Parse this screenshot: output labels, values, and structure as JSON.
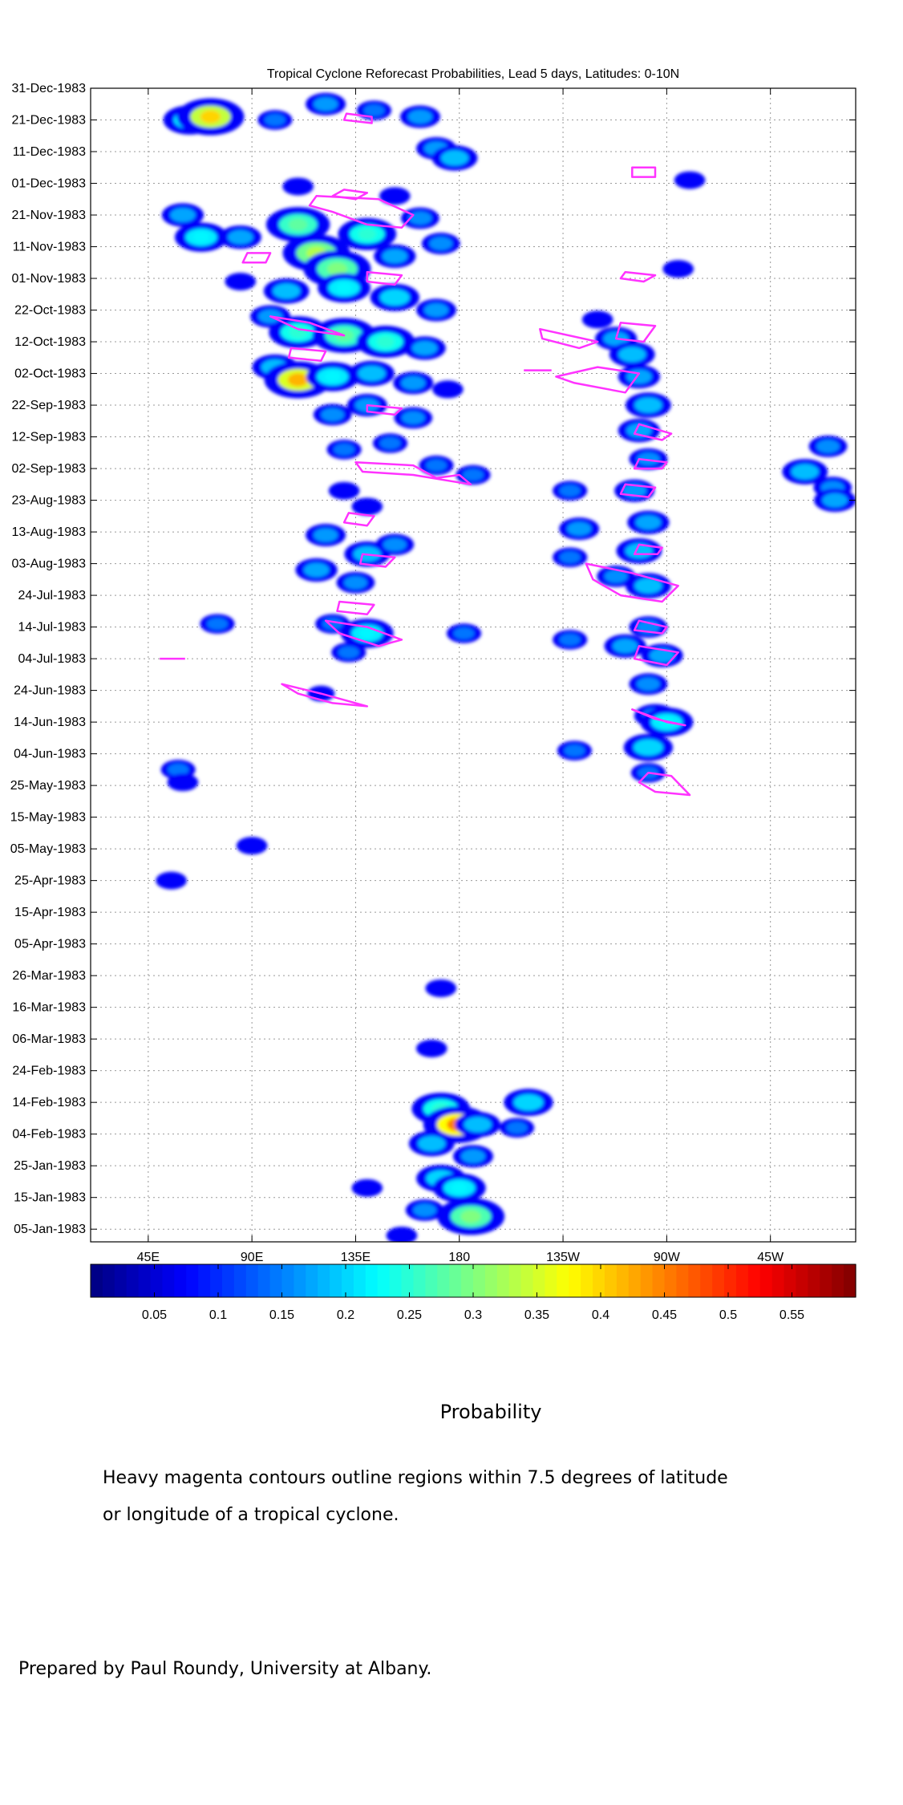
{
  "chart_data": {
    "type": "heatmap",
    "title": "Tropical Cyclone Reforecast Probabilities, Lead 5 days, Latitudes: 0-10N",
    "xlabel": "",
    "ylabel": "",
    "x_tick_labels": [
      "45E",
      "90E",
      "135E",
      "180",
      "135W",
      "90W",
      "45W"
    ],
    "x_tick_values_deg_east": [
      45,
      90,
      135,
      180,
      225,
      270,
      315
    ],
    "xlim_deg_east": [
      20,
      352
    ],
    "y_tick_labels": [
      "31-Dec-1983",
      "21-Dec-1983",
      "11-Dec-1983",
      "01-Dec-1983",
      "21-Nov-1983",
      "11-Nov-1983",
      "01-Nov-1983",
      "22-Oct-1983",
      "12-Oct-1983",
      "02-Oct-1983",
      "22-Sep-1983",
      "12-Sep-1983",
      "02-Sep-1983",
      "23-Aug-1983",
      "13-Aug-1983",
      "03-Aug-1983",
      "24-Jul-1983",
      "14-Jul-1983",
      "04-Jul-1983",
      "24-Jun-1983",
      "14-Jun-1983",
      "04-Jun-1983",
      "25-May-1983",
      "15-May-1983",
      "05-May-1983",
      "25-Apr-1983",
      "15-Apr-1983",
      "05-Apr-1983",
      "26-Mar-1983",
      "16-Mar-1983",
      "06-Mar-1983",
      "24-Feb-1983",
      "14-Feb-1983",
      "04-Feb-1983",
      "25-Jan-1983",
      "15-Jan-1983",
      "05-Jan-1983"
    ],
    "colorbar": {
      "label": "Probability",
      "range": [
        0,
        0.6
      ],
      "tick_labels": [
        "0.05",
        "0.1",
        "0.15",
        "0.2",
        "0.25",
        "0.3",
        "0.35",
        "0.4",
        "0.45",
        "0.5",
        "0.55"
      ],
      "tick_values": [
        0.05,
        0.1,
        0.15,
        0.2,
        0.25,
        0.3,
        0.35,
        0.4,
        0.45,
        0.5,
        0.55
      ],
      "colormap": "jet"
    },
    "grid": true,
    "contour_color": "#ff33ff",
    "blobs": [
      {
        "lon": 63,
        "date": "1983-12-21",
        "p": 0.22
      },
      {
        "lon": 72,
        "date": "1983-12-22",
        "p": 0.4
      },
      {
        "lon": 100,
        "date": "1983-12-21",
        "p": 0.12
      },
      {
        "lon": 122,
        "date": "1983-12-26",
        "p": 0.15
      },
      {
        "lon": 143,
        "date": "1983-12-24",
        "p": 0.12
      },
      {
        "lon": 163,
        "date": "1983-12-22",
        "p": 0.15
      },
      {
        "lon": 170,
        "date": "1983-12-12",
        "p": 0.15
      },
      {
        "lon": 178,
        "date": "1983-12-09",
        "p": 0.18
      },
      {
        "lon": 152,
        "date": "1983-11-27",
        "p": 0.1
      },
      {
        "lon": 110,
        "date": "1983-11-30",
        "p": 0.1
      },
      {
        "lon": 60,
        "date": "1983-11-21",
        "p": 0.16
      },
      {
        "lon": 68,
        "date": "1983-11-14",
        "p": 0.22
      },
      {
        "lon": 85,
        "date": "1983-11-14",
        "p": 0.16
      },
      {
        "lon": 110,
        "date": "1983-11-18",
        "p": 0.28
      },
      {
        "lon": 118,
        "date": "1983-11-09",
        "p": 0.33
      },
      {
        "lon": 127,
        "date": "1983-11-04",
        "p": 0.3
      },
      {
        "lon": 140,
        "date": "1983-11-15",
        "p": 0.25
      },
      {
        "lon": 152,
        "date": "1983-11-08",
        "p": 0.16
      },
      {
        "lon": 163,
        "date": "1983-11-20",
        "p": 0.14
      },
      {
        "lon": 172,
        "date": "1983-11-12",
        "p": 0.14
      },
      {
        "lon": 85,
        "date": "1983-10-31",
        "p": 0.1
      },
      {
        "lon": 105,
        "date": "1983-10-28",
        "p": 0.18
      },
      {
        "lon": 130,
        "date": "1983-10-29",
        "p": 0.22
      },
      {
        "lon": 152,
        "date": "1983-10-26",
        "p": 0.2
      },
      {
        "lon": 170,
        "date": "1983-10-22",
        "p": 0.15
      },
      {
        "lon": 98,
        "date": "1983-10-20",
        "p": 0.15
      },
      {
        "lon": 110,
        "date": "1983-10-15",
        "p": 0.25
      },
      {
        "lon": 130,
        "date": "1983-10-14",
        "p": 0.28
      },
      {
        "lon": 148,
        "date": "1983-10-12",
        "p": 0.25
      },
      {
        "lon": 165,
        "date": "1983-10-10",
        "p": 0.16
      },
      {
        "lon": 100,
        "date": "1983-10-04",
        "p": 0.18
      },
      {
        "lon": 110,
        "date": "1983-09-30",
        "p": 0.42
      },
      {
        "lon": 125,
        "date": "1983-10-01",
        "p": 0.22
      },
      {
        "lon": 142,
        "date": "1983-10-02",
        "p": 0.18
      },
      {
        "lon": 160,
        "date": "1983-09-29",
        "p": 0.15
      },
      {
        "lon": 175,
        "date": "1983-09-27",
        "p": 0.1
      },
      {
        "lon": 125,
        "date": "1983-09-19",
        "p": 0.14
      },
      {
        "lon": 140,
        "date": "1983-09-22",
        "p": 0.15
      },
      {
        "lon": 160,
        "date": "1983-09-18",
        "p": 0.14
      },
      {
        "lon": 130,
        "date": "1983-09-08",
        "p": 0.12
      },
      {
        "lon": 150,
        "date": "1983-09-10",
        "p": 0.12
      },
      {
        "lon": 170,
        "date": "1983-09-03",
        "p": 0.12
      },
      {
        "lon": 186,
        "date": "1983-08-31",
        "p": 0.12
      },
      {
        "lon": 130,
        "date": "1983-08-26",
        "p": 0.1
      },
      {
        "lon": 140,
        "date": "1983-08-21",
        "p": 0.1
      },
      {
        "lon": 122,
        "date": "1983-08-12",
        "p": 0.15
      },
      {
        "lon": 140,
        "date": "1983-08-06",
        "p": 0.18
      },
      {
        "lon": 152,
        "date": "1983-08-09",
        "p": 0.14
      },
      {
        "lon": 118,
        "date": "1983-08-01",
        "p": 0.16
      },
      {
        "lon": 135,
        "date": "1983-07-28",
        "p": 0.14
      },
      {
        "lon": 125,
        "date": "1983-07-15",
        "p": 0.12
      },
      {
        "lon": 140,
        "date": "1983-07-12",
        "p": 0.22
      },
      {
        "lon": 132,
        "date": "1983-07-06",
        "p": 0.12
      },
      {
        "lon": 182,
        "date": "1983-07-12",
        "p": 0.12
      },
      {
        "lon": 75,
        "date": "1983-07-15",
        "p": 0.12
      },
      {
        "lon": 120,
        "date": "1983-06-23",
        "p": 0.08
      },
      {
        "lon": 58,
        "date": "1983-05-30",
        "p": 0.12
      },
      {
        "lon": 60,
        "date": "1983-05-26",
        "p": 0.1
      },
      {
        "lon": 90,
        "date": "1983-05-06",
        "p": 0.1
      },
      {
        "lon": 55,
        "date": "1983-04-25",
        "p": 0.1
      },
      {
        "lon": 172,
        "date": "1983-03-22",
        "p": 0.1
      },
      {
        "lon": 168,
        "date": "1983-03-03",
        "p": 0.1
      },
      {
        "lon": 172,
        "date": "1983-02-12",
        "p": 0.25
      },
      {
        "lon": 179,
        "date": "1983-02-07",
        "p": 0.45
      },
      {
        "lon": 188,
        "date": "1983-02-07",
        "p": 0.18
      },
      {
        "lon": 168,
        "date": "1983-02-01",
        "p": 0.18
      },
      {
        "lon": 186,
        "date": "1983-01-28",
        "p": 0.15
      },
      {
        "lon": 172,
        "date": "1983-01-21",
        "p": 0.2
      },
      {
        "lon": 180,
        "date": "1983-01-18",
        "p": 0.22
      },
      {
        "lon": 185,
        "date": "1983-01-09",
        "p": 0.3
      },
      {
        "lon": 165,
        "date": "1983-01-11",
        "p": 0.14
      },
      {
        "lon": 140,
        "date": "1983-01-18",
        "p": 0.1
      },
      {
        "lon": 155,
        "date": "1983-01-03",
        "p": 0.1
      },
      {
        "lon": 210,
        "date": "1983-02-14",
        "p": 0.2
      },
      {
        "lon": 205,
        "date": "1983-02-06",
        "p": 0.12
      },
      {
        "lon": 240,
        "date": "1983-10-19",
        "p": 0.1
      },
      {
        "lon": 248,
        "date": "1983-10-13",
        "p": 0.16
      },
      {
        "lon": 255,
        "date": "1983-10-08",
        "p": 0.18
      },
      {
        "lon": 258,
        "date": "1983-10-01",
        "p": 0.16
      },
      {
        "lon": 262,
        "date": "1983-09-22",
        "p": 0.18
      },
      {
        "lon": 258,
        "date": "1983-09-14",
        "p": 0.16
      },
      {
        "lon": 262,
        "date": "1983-09-05",
        "p": 0.14
      },
      {
        "lon": 256,
        "date": "1983-08-26",
        "p": 0.15
      },
      {
        "lon": 262,
        "date": "1983-08-16",
        "p": 0.16
      },
      {
        "lon": 258,
        "date": "1983-08-07",
        "p": 0.18
      },
      {
        "lon": 232,
        "date": "1983-08-14",
        "p": 0.15
      },
      {
        "lon": 228,
        "date": "1983-08-05",
        "p": 0.12
      },
      {
        "lon": 248,
        "date": "1983-07-30",
        "p": 0.14
      },
      {
        "lon": 262,
        "date": "1983-07-27",
        "p": 0.18
      },
      {
        "lon": 262,
        "date": "1983-07-14",
        "p": 0.14
      },
      {
        "lon": 252,
        "date": "1983-07-08",
        "p": 0.16
      },
      {
        "lon": 268,
        "date": "1983-07-05",
        "p": 0.16
      },
      {
        "lon": 262,
        "date": "1983-06-26",
        "p": 0.14
      },
      {
        "lon": 265,
        "date": "1983-06-16",
        "p": 0.16
      },
      {
        "lon": 270,
        "date": "1983-06-14",
        "p": 0.22
      },
      {
        "lon": 262,
        "date": "1983-06-06",
        "p": 0.2
      },
      {
        "lon": 262,
        "date": "1983-05-29",
        "p": 0.12
      },
      {
        "lon": 228,
        "date": "1983-07-10",
        "p": 0.12
      },
      {
        "lon": 230,
        "date": "1983-06-05",
        "p": 0.12
      },
      {
        "lon": 228,
        "date": "1983-08-26",
        "p": 0.12
      },
      {
        "lon": 280,
        "date": "1983-12-02",
        "p": 0.1
      },
      {
        "lon": 275,
        "date": "1983-11-04",
        "p": 0.1
      },
      {
        "lon": 330,
        "date": "1983-09-01",
        "p": 0.18
      },
      {
        "lon": 340,
        "date": "1983-09-09",
        "p": 0.14
      },
      {
        "lon": 342,
        "date": "1983-08-27",
        "p": 0.14
      },
      {
        "lon": 343,
        "date": "1983-08-23",
        "p": 0.16
      }
    ],
    "contours": [
      [
        [
          131,
          "1983-12-23"
        ],
        [
          142,
          "1983-12-22"
        ],
        [
          142,
          "1983-12-20"
        ],
        [
          130,
          "1983-12-21"
        ]
      ],
      [
        [
          255,
          "1983-12-06"
        ],
        [
          265,
          "1983-12-06"
        ],
        [
          265,
          "1983-12-03"
        ],
        [
          255,
          "1983-12-03"
        ]
      ],
      [
        [
          118,
          "1983-11-27"
        ],
        [
          145,
          "1983-11-26"
        ],
        [
          160,
          "1983-11-21"
        ],
        [
          155,
          "1983-11-17"
        ],
        [
          140,
          "1983-11-18"
        ],
        [
          125,
          "1983-11-22"
        ],
        [
          115,
          "1983-11-24"
        ]
      ],
      [
        [
          130,
          "1983-11-29"
        ],
        [
          140,
          "1983-11-28"
        ],
        [
          135,
          "1983-11-26"
        ],
        [
          125,
          "1983-11-27"
        ]
      ],
      [
        [
          88,
          "1983-11-09"
        ],
        [
          98,
          "1983-11-09"
        ],
        [
          96,
          "1983-11-06"
        ],
        [
          86,
          "1983-11-06"
        ]
      ],
      [
        [
          252,
          "1983-11-03"
        ],
        [
          265,
          "1983-11-02"
        ],
        [
          260,
          "1983-10-31"
        ],
        [
          250,
          "1983-11-01"
        ]
      ],
      [
        [
          140,
          "1983-11-03"
        ],
        [
          155,
          "1983-11-02"
        ],
        [
          152,
          "1983-10-30"
        ],
        [
          140,
          "1983-10-31"
        ]
      ],
      [
        [
          98,
          "1983-10-20"
        ],
        [
          110,
          "1983-10-16"
        ],
        [
          130,
          "1983-10-14"
        ],
        [
          115,
          "1983-10-18"
        ]
      ],
      [
        [
          107,
          "1983-10-10"
        ],
        [
          122,
          "1983-10-09"
        ],
        [
          120,
          "1983-10-06"
        ],
        [
          106,
          "1983-10-07"
        ]
      ],
      [
        [
          215,
          "1983-10-16"
        ],
        [
          240,
          "1983-10-12"
        ],
        [
          232,
          "1983-10-10"
        ],
        [
          216,
          "1983-10-13"
        ]
      ],
      [
        [
          250,
          "1983-10-18"
        ],
        [
          265,
          "1983-10-17"
        ],
        [
          260,
          "1983-10-12"
        ],
        [
          248,
          "1983-10-13"
        ]
      ],
      [
        [
          240,
          "1983-10-04"
        ],
        [
          258,
          "1983-10-02"
        ],
        [
          252,
          "1983-09-26"
        ],
        [
          230,
          "1983-09-29"
        ],
        [
          222,
          "1983-10-01"
        ]
      ],
      [
        [
          140,
          "1983-09-22"
        ],
        [
          155,
          "1983-09-21"
        ],
        [
          152,
          "1983-09-19"
        ],
        [
          140,
          "1983-09-20"
        ]
      ],
      [
        [
          258,
          "1983-09-16"
        ],
        [
          272,
          "1983-09-13"
        ],
        [
          268,
          "1983-09-11"
        ],
        [
          256,
          "1983-09-13"
        ]
      ],
      [
        [
          135,
          "1983-09-04"
        ],
        [
          160,
          "1983-09-03"
        ],
        [
          170,
          "1983-08-30"
        ],
        [
          180,
          "1983-08-31"
        ],
        [
          185,
          "1983-08-28"
        ],
        [
          160,
          "1983-08-31"
        ],
        [
          138,
          "1983-09-01"
        ]
      ],
      [
        [
          258,
          "1983-09-05"
        ],
        [
          270,
          "1983-09-04"
        ],
        [
          268,
          "1983-09-02"
        ],
        [
          256,
          "1983-09-02"
        ]
      ],
      [
        [
          252,
          "1983-08-28"
        ],
        [
          265,
          "1983-08-27"
        ],
        [
          262,
          "1983-08-24"
        ],
        [
          250,
          "1983-08-25"
        ]
      ],
      [
        [
          132,
          "1983-08-19"
        ],
        [
          143,
          "1983-08-18"
        ],
        [
          140,
          "1983-08-15"
        ],
        [
          130,
          "1983-08-16"
        ]
      ],
      [
        [
          138,
          "1983-08-06"
        ],
        [
          152,
          "1983-08-05"
        ],
        [
          148,
          "1983-08-02"
        ],
        [
          137,
          "1983-08-03"
        ]
      ],
      [
        [
          258,
          "1983-08-09"
        ],
        [
          268,
          "1983-08-08"
        ],
        [
          266,
          "1983-08-06"
        ],
        [
          256,
          "1983-08-06"
        ]
      ],
      [
        [
          235,
          "1983-08-03"
        ],
        [
          255,
          "1983-07-31"
        ],
        [
          275,
          "1983-07-27"
        ],
        [
          268,
          "1983-07-22"
        ],
        [
          250,
          "1983-07-24"
        ],
        [
          238,
          "1983-07-29"
        ]
      ],
      [
        [
          128,
          "1983-07-22"
        ],
        [
          143,
          "1983-07-21"
        ],
        [
          140,
          "1983-07-18"
        ],
        [
          127,
          "1983-07-19"
        ]
      ],
      [
        [
          122,
          "1983-07-16"
        ],
        [
          140,
          "1983-07-14"
        ],
        [
          155,
          "1983-07-10"
        ],
        [
          145,
          "1983-07-08"
        ],
        [
          128,
          "1983-07-12"
        ]
      ],
      [
        [
          258,
          "1983-07-16"
        ],
        [
          270,
          "1983-07-14"
        ],
        [
          268,
          "1983-07-12"
        ],
        [
          256,
          "1983-07-13"
        ]
      ],
      [
        [
          258,
          "1983-07-08"
        ],
        [
          275,
          "1983-07-06"
        ],
        [
          270,
          "1983-07-02"
        ],
        [
          256,
          "1983-07-04"
        ]
      ],
      [
        [
          103,
          "1983-06-26"
        ],
        [
          120,
          "1983-06-23"
        ],
        [
          140,
          "1983-06-19"
        ],
        [
          125,
          "1983-06-20"
        ],
        [
          110,
          "1983-06-23"
        ]
      ],
      [
        [
          255,
          "1983-06-18"
        ],
        [
          270,
          "1983-06-14"
        ],
        [
          278,
          "1983-06-13"
        ],
        [
          265,
          "1983-06-15"
        ]
      ],
      [
        [
          262,
          "1983-05-29"
        ],
        [
          272,
          "1983-05-28"
        ],
        [
          280,
          "1983-05-22"
        ],
        [
          265,
          "1983-05-23"
        ],
        [
          258,
          "1983-05-26"
        ]
      ],
      [
        [
          50,
          "1983-07-04"
        ],
        [
          61,
          "1983-07-04"
        ]
      ],
      [
        [
          208,
          "1983-10-03"
        ],
        [
          220,
          "1983-10-03"
        ]
      ]
    ]
  },
  "caption": {
    "line1": "Heavy magenta contours outline regions within 7.5 degrees of latitude",
    "line2": "or longitude of a tropical cyclone.",
    "credit": "Prepared by Paul Roundy, University at Albany."
  }
}
